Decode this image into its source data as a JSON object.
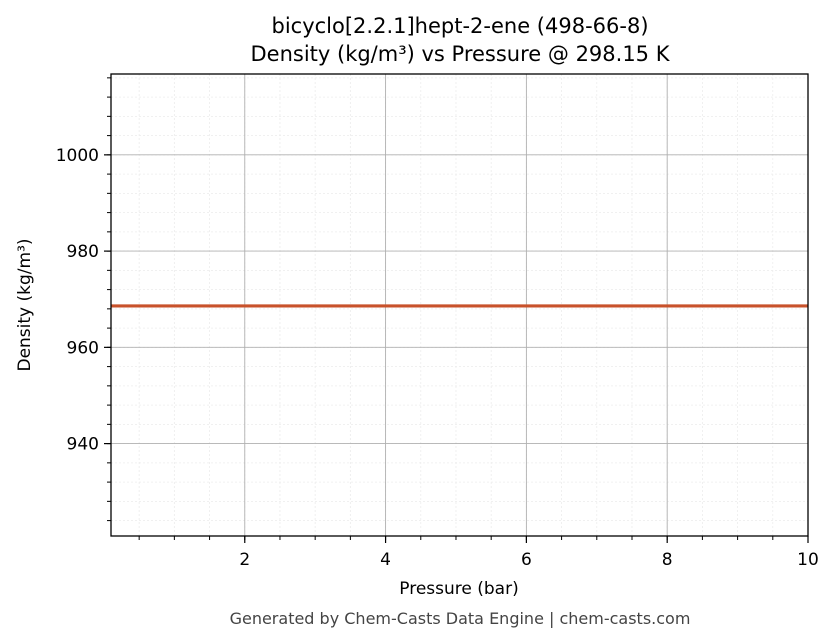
{
  "chart_data": {
    "type": "line",
    "title_line1": "bicyclo[2.2.1]hept-2-ene (498-66-8)",
    "title_line2": "Density (kg/m³) vs Pressure @ 298.15 K",
    "xlabel": "Pressure (bar)",
    "ylabel": "Density (kg/m³)",
    "xlim": [
      0.1,
      10
    ],
    "ylim": [
      920.8,
      1016.8
    ],
    "x_ticks": [
      2,
      4,
      6,
      8,
      10
    ],
    "y_ticks": [
      940,
      960,
      980,
      1000
    ],
    "grid": true,
    "series": [
      {
        "color": "#c8522b",
        "x": [
          0.1,
          1,
          2,
          3,
          4,
          5,
          6,
          7,
          8,
          9,
          10
        ],
        "y": [
          968.6,
          968.6,
          968.6,
          968.6,
          968.6,
          968.6,
          968.6,
          968.6,
          968.6,
          968.6,
          968.6
        ]
      }
    ]
  },
  "footer": "Generated by Chem-Casts Data Engine | chem-casts.com"
}
